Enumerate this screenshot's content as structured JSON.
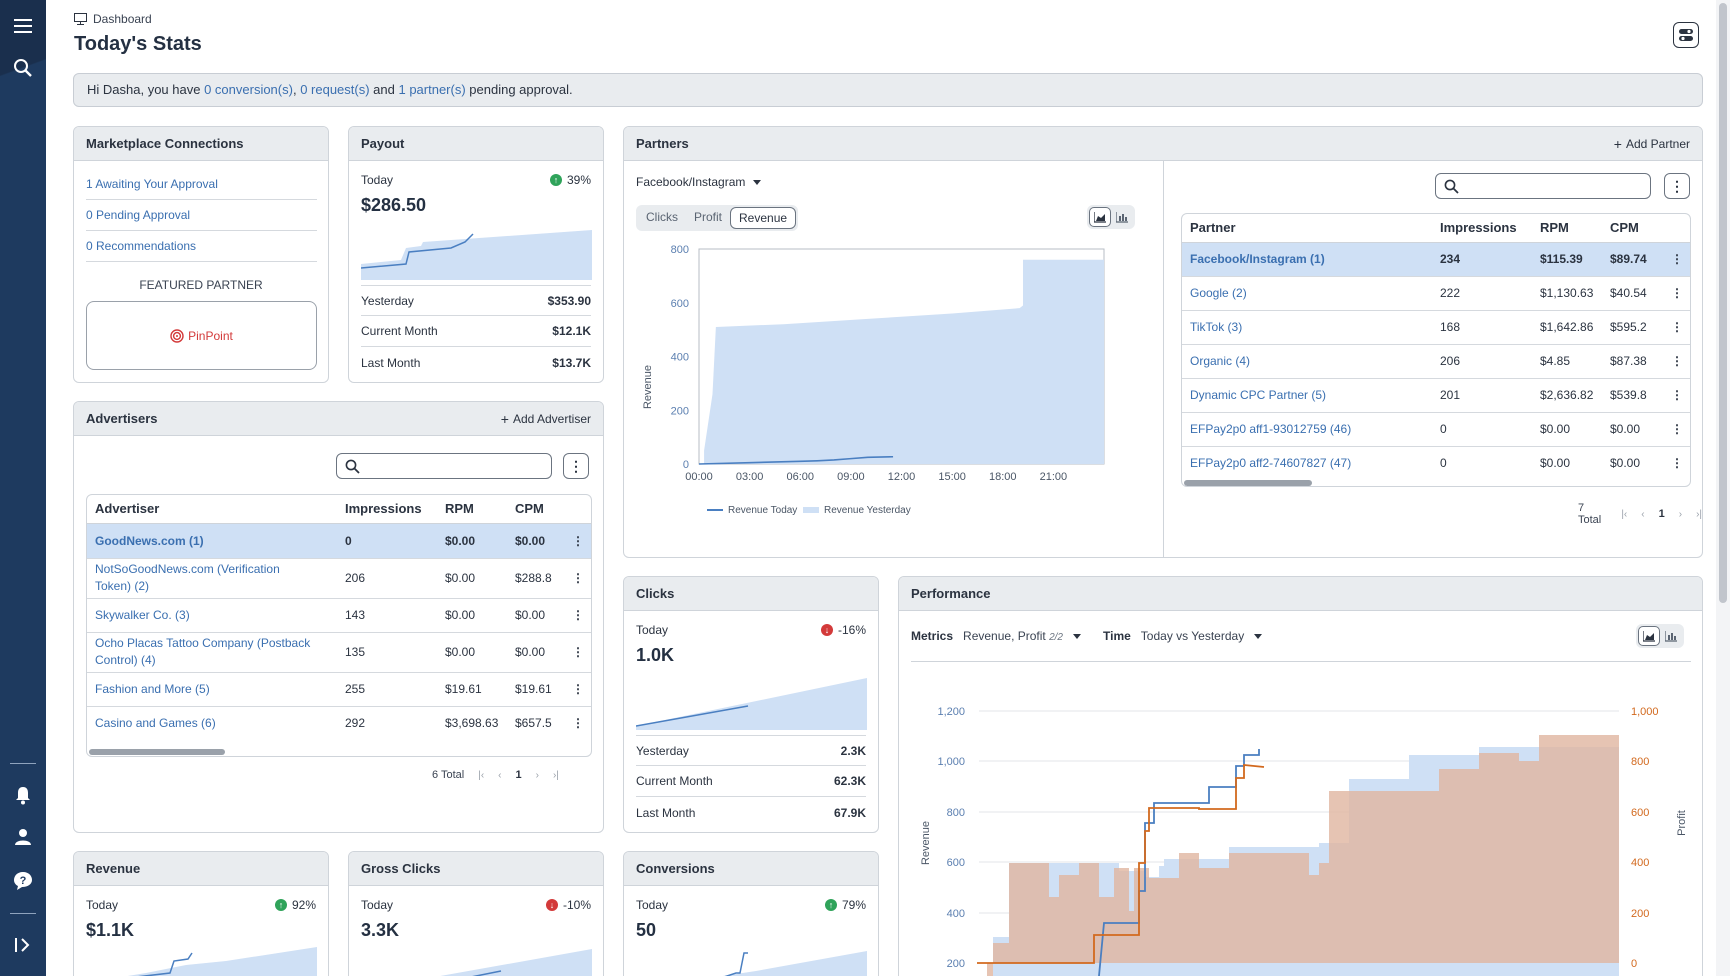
{
  "breadcrumb": "Dashboard",
  "page_title": "Today's Stats",
  "banner": {
    "greeting": "Hi Dasha, you have ",
    "conversions": "0 conversion(s)",
    "sep1": ", ",
    "requests": "0 request(s)",
    "sep2": " and ",
    "partners": "1 partner(s)",
    "tail": " pending approval."
  },
  "marketplace": {
    "title": "Marketplace Connections",
    "links": [
      "1 Awaiting Your Approval",
      "0 Pending Approval",
      "0 Recommendations"
    ],
    "featured_label": "FEATURED PARTNER",
    "featured_name": "PinPoint"
  },
  "payout": {
    "title": "Payout",
    "today_label": "Today",
    "change": "39%",
    "value": "$286.50",
    "rows": [
      {
        "label": "Yesterday",
        "value": "$353.90"
      },
      {
        "label": "Current Month",
        "value": "$12.1K"
      },
      {
        "label": "Last Month",
        "value": "$13.7K"
      }
    ]
  },
  "advertisers": {
    "title": "Advertisers",
    "add_label": "Add Advertiser",
    "columns": [
      "Advertiser",
      "Impressions",
      "RPM",
      "CPM"
    ],
    "rows": [
      {
        "name": "GoodNews.com (1)",
        "impressions": "0",
        "rpm": "$0.00",
        "cpm": "$0.00"
      },
      {
        "name": "NotSoGoodNews.com (Verification",
        "name2": "Token) (2)",
        "impressions": "206",
        "rpm": "$0.00",
        "cpm": "$288.8"
      },
      {
        "name": "Skywalker Co. (3)",
        "impressions": "143",
        "rpm": "$0.00",
        "cpm": "$0.00"
      },
      {
        "name": "Ocho Placas Tattoo Company (Postback",
        "name2": "Control) (4)",
        "impressions": "135",
        "rpm": "$0.00",
        "cpm": "$0.00"
      },
      {
        "name": "Fashion and More (5)",
        "impressions": "255",
        "rpm": "$19.61",
        "cpm": "$19.61"
      },
      {
        "name": "Casino and Games (6)",
        "impressions": "292",
        "rpm": "$3,698.63",
        "cpm": "$657.5"
      }
    ],
    "total": "6 Total",
    "page": "1"
  },
  "partners": {
    "title": "Partners",
    "add_label": "Add Partner",
    "source": "Facebook/Instagram",
    "tabs": [
      "Clicks",
      "Profit",
      "Revenue"
    ],
    "active_tab": "Revenue",
    "columns": [
      "Partner",
      "Impressions",
      "RPM",
      "CPM"
    ],
    "rows": [
      {
        "name": "Facebook/Instagram (1)",
        "impressions": "234",
        "rpm": "$115.39",
        "cpm": "$89.74"
      },
      {
        "name": "Google (2)",
        "impressions": "222",
        "rpm": "$1,130.63",
        "cpm": "$40.54"
      },
      {
        "name": "TikTok (3)",
        "impressions": "168",
        "rpm": "$1,642.86",
        "cpm": "$595.2"
      },
      {
        "name": "Organic (4)",
        "impressions": "206",
        "rpm": "$4.85",
        "cpm": "$87.38"
      },
      {
        "name": "Dynamic CPC Partner (5)",
        "impressions": "201",
        "rpm": "$2,636.82",
        "cpm": "$539.8"
      },
      {
        "name": "EFPay2p0 aff1-93012759 (46)",
        "impressions": "0",
        "rpm": "$0.00",
        "cpm": "$0.00"
      },
      {
        "name": "EFPay2p0 aff2-74607827 (47)",
        "impressions": "0",
        "rpm": "$0.00",
        "cpm": "$0.00"
      }
    ],
    "total": "7 Total",
    "page": "1"
  },
  "clicks": {
    "title": "Clicks",
    "today_label": "Today",
    "change": "-16%",
    "value": "1.0K",
    "rows": [
      {
        "label": "Yesterday",
        "value": "2.3K"
      },
      {
        "label": "Current Month",
        "value": "62.3K"
      },
      {
        "label": "Last Month",
        "value": "67.9K"
      }
    ]
  },
  "performance": {
    "title": "Performance",
    "metrics_label": "Metrics",
    "metrics_value": "Revenue, Profit",
    "metrics_count": "2/2",
    "time_label": "Time",
    "time_value": "Today vs Yesterday"
  },
  "revenue": {
    "title": "Revenue",
    "today_label": "Today",
    "change": "92%",
    "value": "$1.1K"
  },
  "gross_clicks": {
    "title": "Gross Clicks",
    "today_label": "Today",
    "change": "-10%",
    "value": "3.3K"
  },
  "conversions": {
    "title": "Conversions",
    "today_label": "Today",
    "change": "79%",
    "value": "50"
  },
  "chart_data": [
    {
      "type": "area",
      "ylabel": "Revenue",
      "ylim": [
        0,
        800
      ],
      "yticks": [
        "800",
        "600",
        "400",
        "200",
        "0"
      ],
      "x": [
        "00:00",
        "03:00",
        "06:00",
        "09:00",
        "12:00",
        "15:00",
        "18:00",
        "21:00"
      ],
      "legend": [
        "Revenue Today",
        "Revenue Yesterday"
      ],
      "series": [
        {
          "name": "Revenue Yesterday",
          "points": [
            [
              0,
              0
            ],
            [
              0.3,
              0
            ],
            [
              0.3,
              50
            ],
            [
              0.8,
              260
            ],
            [
              1,
              510
            ],
            [
              5,
              520
            ],
            [
              10,
              540
            ],
            [
              15,
              560
            ],
            [
              19,
              580
            ],
            [
              19.2,
              590
            ],
            [
              19.2,
              760
            ],
            [
              24,
              760
            ]
          ]
        },
        {
          "name": "Revenue Today",
          "points": [
            [
              0,
              0
            ],
            [
              3,
              5
            ],
            [
              6,
              10
            ],
            [
              7,
              12
            ],
            [
              8,
              15
            ],
            [
              9,
              20
            ],
            [
              10,
              25
            ],
            [
              11.5,
              27
            ]
          ]
        }
      ]
    },
    {
      "type": "line",
      "ylabel": "Revenue",
      "y2label": "Profit",
      "yticks": [
        "1,200",
        "1,000",
        "800",
        "600",
        "400",
        "200"
      ],
      "y2ticks": [
        "1,000",
        "800",
        "600",
        "400",
        "200",
        "0"
      ],
      "legend": "none"
    }
  ]
}
